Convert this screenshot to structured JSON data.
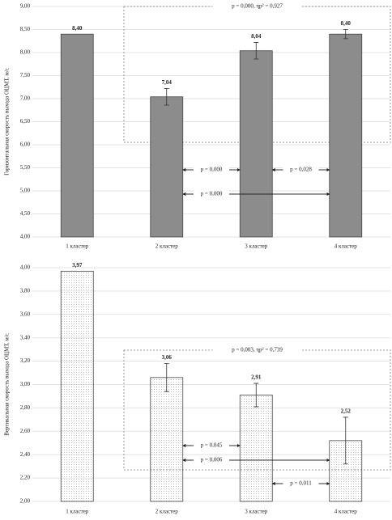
{
  "chart_data": [
    {
      "type": "bar",
      "y_label": "Горизонтальная скорость выхода ОЦМТ, м/с",
      "categories": [
        "1 кластер",
        "2 кластер",
        "3 кластер",
        "4 кластер"
      ],
      "values": [
        8.4,
        7.04,
        8.04,
        8.4
      ],
      "value_labels": [
        "8,40",
        "7,04",
        "8,04",
        "8,40"
      ],
      "errors": [
        null,
        0.18,
        0.18,
        0.1
      ],
      "color": "#8c8c8c",
      "ylim": [
        4,
        9
      ],
      "yticks": [
        {
          "value": 4,
          "label": "4,00"
        },
        {
          "value": 4.5,
          "label": "4,50"
        },
        {
          "value": 5,
          "label": "5,00"
        },
        {
          "value": 5.5,
          "label": "5,50"
        },
        {
          "value": 6,
          "label": "6,00"
        },
        {
          "value": 6.5,
          "label": "6,50"
        },
        {
          "value": 7,
          "label": "7,00"
        },
        {
          "value": 7.5,
          "label": "7,50"
        },
        {
          "value": 8,
          "label": "8,00"
        },
        {
          "value": 8.5,
          "label": "8,50"
        },
        {
          "value": 9,
          "label": "9,00"
        }
      ],
      "grid": true,
      "box_annotation": "p = 0,000, ηp² = 0,927",
      "comparisons": [
        "p = 0,000",
        "p = 0,028",
        "p = 0,000"
      ]
    },
    {
      "type": "bar",
      "y_label": "Вертикальная скорость выхода ОЦМТ, м/с",
      "categories": [
        "1 кластер",
        "2 кластер",
        "3 кластер",
        "4 кластер"
      ],
      "values": [
        3.97,
        3.06,
        2.91,
        2.52
      ],
      "value_labels": [
        "3,97",
        "3,06",
        "2,91",
        "2,52"
      ],
      "errors": [
        null,
        0.12,
        0.1,
        0.2
      ],
      "color": "#f1f1f1",
      "ylim": [
        2,
        4
      ],
      "yticks": [
        {
          "value": 2,
          "label": "2,00"
        },
        {
          "value": 2.2,
          "label": "2,20"
        },
        {
          "value": 2.4,
          "label": "2,40"
        },
        {
          "value": 2.6,
          "label": "2,60"
        },
        {
          "value": 2.8,
          "label": "2,80"
        },
        {
          "value": 3,
          "label": "3,00"
        },
        {
          "value": 3.2,
          "label": "3,20"
        },
        {
          "value": 3.4,
          "label": "3,40"
        },
        {
          "value": 3.6,
          "label": "3,60"
        },
        {
          "value": 3.8,
          "label": "3,80"
        },
        {
          "value": 4,
          "label": "4,00"
        }
      ],
      "grid": true,
      "box_annotation": "p = 0,003, ηp² = 0,739",
      "comparisons": [
        "p = 0,045",
        "p = 0,006",
        "p = 0,011"
      ]
    }
  ]
}
